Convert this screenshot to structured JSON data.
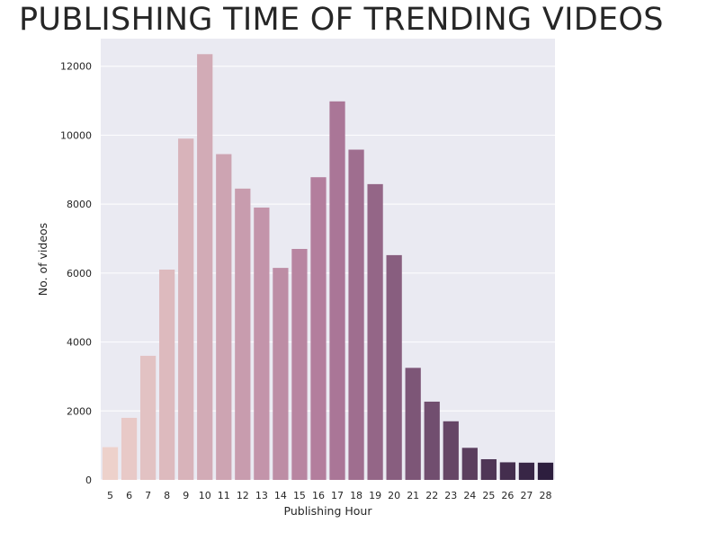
{
  "chart_data": {
    "type": "bar",
    "title": "PUBLISHING TIME OF TRENDING VIDEOS",
    "xlabel": "Publishing Hour",
    "ylabel": "No. of videos",
    "categories": [
      "5",
      "6",
      "7",
      "8",
      "9",
      "10",
      "11",
      "12",
      "13",
      "14",
      "15",
      "16",
      "17",
      "18",
      "19",
      "20",
      "21",
      "22",
      "23",
      "24",
      "25",
      "26",
      "27",
      "28"
    ],
    "values": [
      950,
      1800,
      3600,
      6100,
      9900,
      12350,
      9450,
      8450,
      7900,
      6150,
      6700,
      8780,
      10980,
      9580,
      8580,
      6520,
      3250,
      2270,
      1700,
      930,
      600,
      510,
      500,
      500
    ],
    "ylim": [
      0,
      12800
    ],
    "yticks": [
      0,
      2000,
      4000,
      6000,
      8000,
      10000,
      12000
    ],
    "grid": true,
    "legend": "none",
    "colors": {
      "background": "#eaeaf2",
      "grid": "#ffffff",
      "bar_start": "#edd1cb",
      "bar_mid": "#b07a9b",
      "bar_end": "#2d1e3e"
    }
  }
}
